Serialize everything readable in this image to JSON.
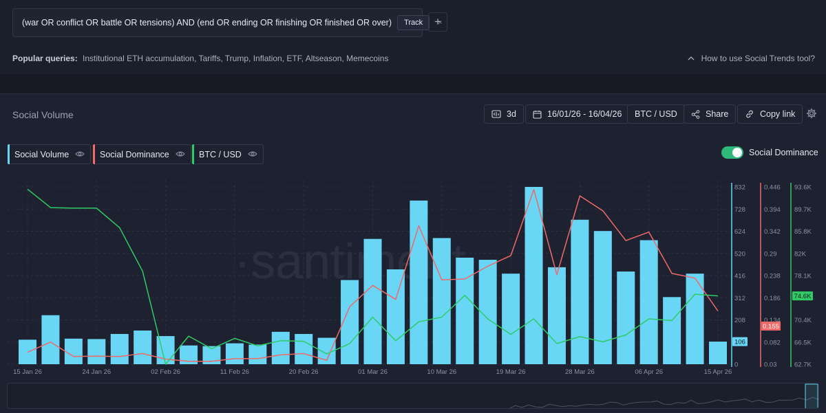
{
  "query": {
    "text": "(war OR conflict OR battle OR tensions) AND (end OR ending OR finishing OR finished OR over)",
    "track_label": "Track",
    "close_glyph": "×",
    "add_glyph": "+"
  },
  "popular": {
    "label": "Popular queries:",
    "items": "Institutional ETH accumulation, Tariffs, Trump, Inflation, ETF, Altseason, Memecoins"
  },
  "howto_label": "How to use Social Trends tool?",
  "panel": {
    "title": "Social Volume",
    "interval": "3d",
    "date_range": "16/01/26 - 16/04/26",
    "pair": "BTC / USD",
    "share_label": "Share",
    "copy_label": "Copy link"
  },
  "legend": {
    "items": [
      {
        "label": "Social Volume",
        "color": "#68d6f4"
      },
      {
        "label": "Social Dominance",
        "color": "#f06a6a"
      },
      {
        "label": "BTC / USD",
        "color": "#2fcc66"
      }
    ],
    "toggle_label": "Social Dominance"
  },
  "watermark": "·santiment",
  "chart_data": {
    "type": "bar",
    "x": [
      "15 Jan 26",
      "18 Jan 26",
      "21 Jan 26",
      "24 Jan 26",
      "27 Jan 26",
      "30 Jan 26",
      "02 Feb 26",
      "05 Feb 26",
      "08 Feb 26",
      "11 Feb 26",
      "14 Feb 26",
      "17 Feb 26",
      "20 Feb 26",
      "23 Feb 26",
      "26 Feb 26",
      "01 Mar 26",
      "04 Mar 26",
      "07 Mar 26",
      "10 Mar 26",
      "13 Mar 26",
      "16 Mar 26",
      "19 Mar 26",
      "22 Mar 26",
      "25 Mar 26",
      "28 Mar 26",
      "31 Mar 26",
      "03 Apr 26",
      "06 Apr 26",
      "09 Apr 26",
      "12 Apr 26",
      "15 Apr 26"
    ],
    "x_tick_labels": [
      "15 Jan 26",
      "24 Jan 26",
      "02 Feb 26",
      "11 Feb 26",
      "20 Feb 26",
      "01 Mar 26",
      "10 Mar 26",
      "19 Mar 26",
      "28 Mar 26",
      "06 Apr 26",
      "15 Apr 26"
    ],
    "series": [
      {
        "name": "Social Volume",
        "type": "bar",
        "color": "#68d6f4",
        "axis": "volume",
        "values": [
          115,
          230,
          120,
          118,
          142,
          158,
          132,
          88,
          85,
          98,
          92,
          152,
          142,
          124,
          395,
          588,
          445,
          768,
          592,
          500,
          490,
          425,
          832,
          455,
          678,
          625,
          435,
          582,
          315,
          425,
          106
        ]
      },
      {
        "name": "Social Dominance",
        "type": "line",
        "color": "#f06a6a",
        "axis": "dominance",
        "values": [
          0.058,
          0.082,
          0.048,
          0.049,
          0.048,
          0.055,
          0.042,
          0.037,
          0.037,
          0.043,
          0.043,
          0.052,
          0.055,
          0.039,
          0.165,
          0.215,
          0.182,
          0.355,
          0.228,
          0.23,
          0.26,
          0.285,
          0.44,
          0.24,
          0.425,
          0.39,
          0.32,
          0.34,
          0.243,
          0.232,
          0.155
        ]
      },
      {
        "name": "BTC / USD",
        "type": "line",
        "color": "#2fcc66",
        "axis": "btc",
        "values": [
          93200,
          90000,
          89900,
          89900,
          86500,
          78900,
          62700,
          67600,
          65400,
          67200,
          65900,
          66800,
          66700,
          64500,
          66300,
          70900,
          66800,
          70100,
          70900,
          74700,
          70600,
          67900,
          70600,
          66300,
          67500,
          66600,
          67800,
          70600,
          70300,
          74900,
          74600
        ]
      }
    ],
    "axes": {
      "volume": {
        "range": [
          0,
          832
        ],
        "ticks": [
          "832",
          "728",
          "624",
          "520",
          "416",
          "312",
          "208",
          "104",
          "0"
        ],
        "last_label": "106",
        "color": "#68d6f4"
      },
      "dominance": {
        "range": [
          0.03,
          0.446
        ],
        "ticks": [
          "0.446",
          "0.394",
          "0.342",
          "0.29",
          "0.238",
          "0.186",
          "0.134",
          "0.082",
          "0.03"
        ],
        "last_label": "0.155",
        "color": "#f06a6a"
      },
      "btc": {
        "range": [
          62700,
          93600
        ],
        "ticks": [
          "93.6K",
          "89.7K",
          "85.8K",
          "82K",
          "78.1K",
          "74.2K",
          "70.4K",
          "66.5K",
          "62.7K"
        ],
        "last_label": "74.6K",
        "color": "#2fcc66"
      }
    },
    "title": "Social Volume",
    "xlabel": "",
    "ylabel": "",
    "grid": true
  }
}
